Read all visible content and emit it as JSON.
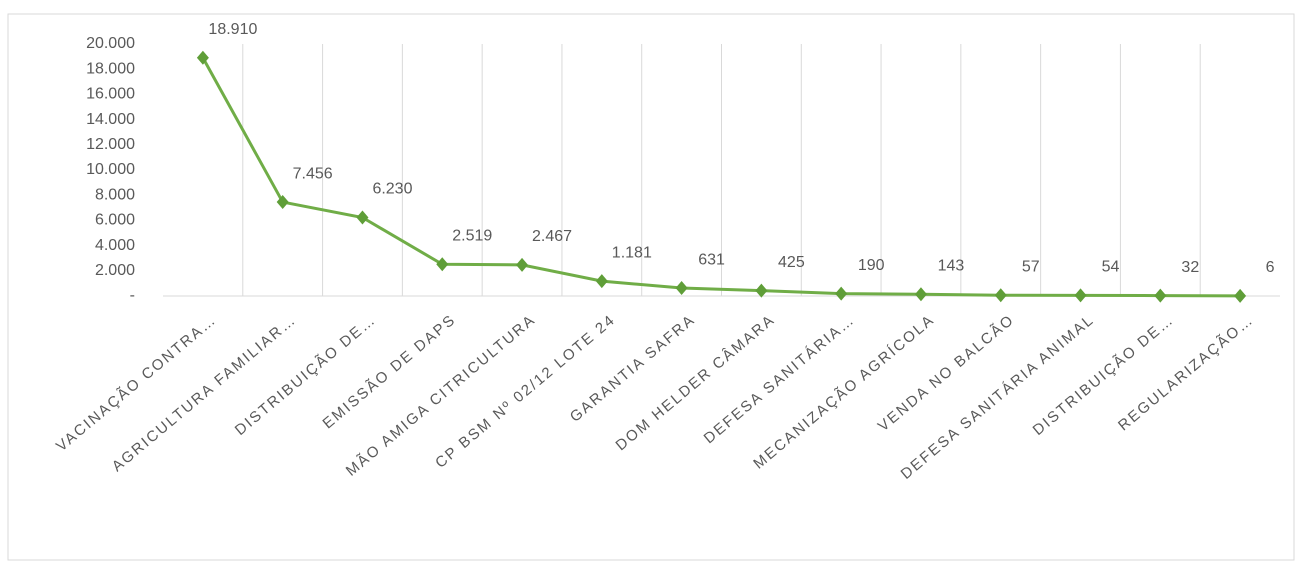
{
  "chart_data": {
    "type": "line",
    "categories": [
      "VACINAÇÃO CONTRA…",
      "AGRICULTURA FAMILIAR…",
      "DISTRIBUIÇÃO DE…",
      "EMISSÃO DE DAPS",
      "MÃO AMIGA CITRICULTURA",
      "CP BSM Nº 02/12 LOTE 24",
      "GARANTIA SAFRA",
      "DOM HELDER CÂMARA",
      "DEFESA SANITÁRIA…",
      "MECANIZAÇÃO AGRÍCOLA",
      "VENDA NO BALCÃO",
      "DEFESA SANITÁRIA ANIMAL",
      "DISTRIBUIÇÃO DE…",
      "REGULARIZAÇÃO…"
    ],
    "values": [
      18910,
      7456,
      6230,
      2519,
      2467,
      1181,
      631,
      425,
      190,
      143,
      57,
      54,
      32,
      6
    ],
    "value_labels": [
      "18.910",
      "7.456",
      "6.230",
      "2.519",
      "2.467",
      "1.181",
      "631",
      "425",
      "190",
      "143",
      "57",
      "54",
      "32",
      "6"
    ],
    "color": "#70ad47",
    "ylim": [
      0,
      20000
    ],
    "yticks": [
      {
        "value": 0,
        "label": "-"
      },
      {
        "value": 2000,
        "label": "2.000"
      },
      {
        "value": 4000,
        "label": "4.000"
      },
      {
        "value": 6000,
        "label": "6.000"
      },
      {
        "value": 8000,
        "label": "8.000"
      },
      {
        "value": 10000,
        "label": "10.000"
      },
      {
        "value": 12000,
        "label": "12.000"
      },
      {
        "value": 14000,
        "label": "14.000"
      },
      {
        "value": 16000,
        "label": "16.000"
      },
      {
        "value": 18000,
        "label": "18.000"
      },
      {
        "value": 20000,
        "label": "20.000"
      }
    ],
    "grid": true
  }
}
